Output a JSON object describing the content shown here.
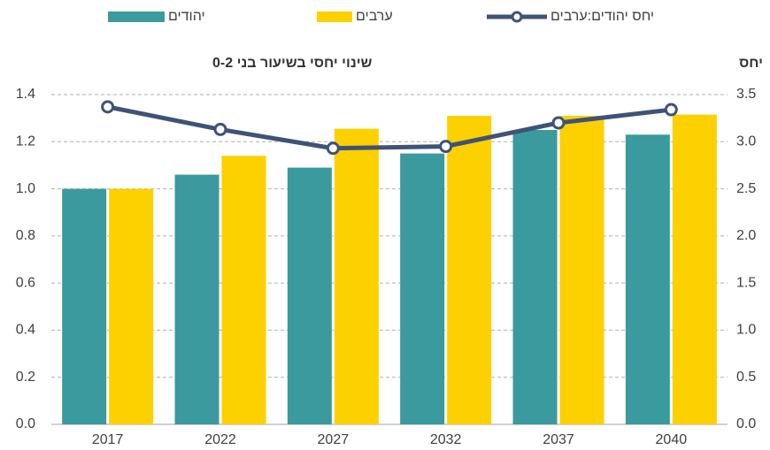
{
  "chart_data": {
    "type": "bar",
    "y_title": "שינוי יחסי בשיעור בני 0-2",
    "y2_title": "יחס",
    "categories": [
      "2017",
      "2022",
      "2027",
      "2032",
      "2037",
      "2040"
    ],
    "series": [
      {
        "name": "יהודים",
        "color": "#3a9a9e",
        "values": [
          1.0,
          1.06,
          1.09,
          1.15,
          1.25,
          1.23
        ]
      },
      {
        "name": "ערבים",
        "color": "#fdd000",
        "values": [
          1.0,
          1.14,
          1.255,
          1.31,
          1.31,
          1.315
        ]
      },
      {
        "name": "יחס יהודים:ערבים",
        "color": "#3f5378",
        "type": "line",
        "axis": "y2",
        "values": [
          3.37,
          3.13,
          2.93,
          2.95,
          3.2,
          3.34
        ]
      }
    ],
    "ylim": [
      0,
      1.4
    ],
    "yticks": [
      {
        "value": 0,
        "label": "0.0"
      },
      0.2,
      0.4,
      0.6,
      0.8,
      {
        "value": 1,
        "label": "1.0"
      },
      1.2,
      1.4
    ],
    "y2lim": [
      0,
      3.5
    ],
    "y2ticks": [
      {
        "value": 0,
        "label": "0.0"
      },
      0.5,
      {
        "value": 1,
        "label": "1.0"
      },
      1.5,
      {
        "value": 2,
        "label": "2.0"
      },
      2.5,
      {
        "value": 3,
        "label": "3.0"
      },
      3.5
    ],
    "grid": true,
    "legend": "top"
  }
}
